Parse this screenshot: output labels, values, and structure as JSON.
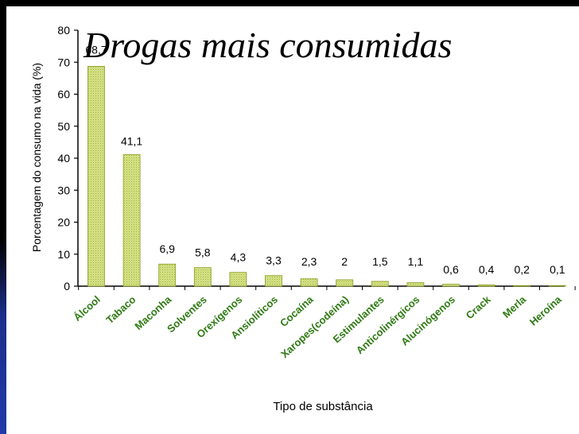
{
  "slide": {
    "title": "Drogas mais consumidas"
  },
  "chart_data": {
    "type": "bar",
    "title": "",
    "xlabel": "Tipo de substância",
    "ylabel": "Porcentagem do consumo na vida (%)",
    "ylim": [
      0,
      80
    ],
    "yticks": [
      0,
      10,
      20,
      30,
      40,
      50,
      60,
      70,
      80
    ],
    "categories": [
      "Álcool",
      "Tabaco",
      "Maconha",
      "Solventes",
      "Orexígenos",
      "Ansiolíticos",
      "Cocaína",
      "Xaropes(codeína)",
      "Estimulantes",
      "Anticolinérgicos",
      "Alucinógenos",
      "Crack",
      "Merla",
      "Heroína"
    ],
    "values": [
      68.7,
      41.1,
      6.9,
      5.8,
      4.3,
      3.3,
      2.3,
      2,
      1.5,
      1.1,
      0.6,
      0.4,
      0.2,
      0.1
    ],
    "data_labels": [
      "68,7",
      "41,1",
      "6,9",
      "5,8",
      "4,3",
      "3,3",
      "2,3",
      "2",
      "1,5",
      "1,1",
      "0,6",
      "0,4",
      "0,2",
      "0,1"
    ],
    "grid": false,
    "legend": "none",
    "colors": {
      "bar_fill": "#d6e38a",
      "bar_edge": "#8a9a20",
      "category_label": "#2e7a12",
      "axis": "#000000"
    }
  }
}
